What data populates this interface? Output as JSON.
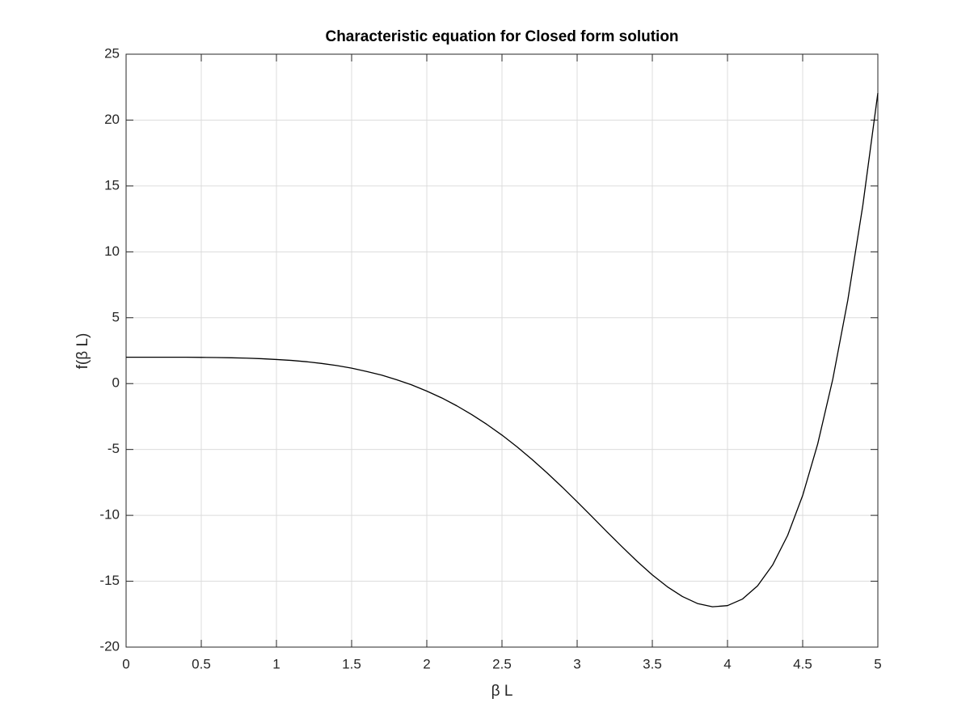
{
  "chart_data": {
    "type": "line",
    "title": "Characteristic equation for Closed form solution",
    "xlabel": "β L",
    "ylabel": "f(β L)",
    "x": [
      0,
      0.1,
      0.2,
      0.3,
      0.4,
      0.5,
      0.6,
      0.7,
      0.8,
      0.9,
      1.0,
      1.1,
      1.2,
      1.3,
      1.4,
      1.5,
      1.6,
      1.7,
      1.8,
      1.9,
      2.0,
      2.1,
      2.2,
      2.3,
      2.4,
      2.5,
      2.6,
      2.7,
      2.8,
      2.9,
      3.0,
      3.1,
      3.2,
      3.3,
      3.4,
      3.5,
      3.6,
      3.7,
      3.8,
      3.9,
      4.0,
      4.1,
      4.2,
      4.3,
      4.4,
      4.5,
      4.6,
      4.7,
      4.8,
      4.9,
      5.0
    ],
    "values": [
      2,
      2.0,
      2.0,
      2.0,
      2.0,
      1.99,
      1.98,
      1.96,
      1.93,
      1.89,
      1.83,
      1.76,
      1.66,
      1.53,
      1.37,
      1.17,
      0.92,
      0.64,
      0.29,
      -0.1,
      -0.57,
      -1.09,
      -1.69,
      -2.36,
      -3.1,
      -3.91,
      -4.8,
      -5.76,
      -6.78,
      -7.85,
      -8.97,
      -10.11,
      -11.27,
      -12.4,
      -13.5,
      -14.52,
      -15.42,
      -16.16,
      -16.69,
      -16.94,
      -16.85,
      -16.35,
      -15.35,
      -13.77,
      -11.52,
      -8.49,
      -4.58,
      0.32,
      6.32,
      13.52,
      22.05
    ],
    "color": "#000000",
    "xlim": [
      0,
      5
    ],
    "xticks": [
      0,
      0.5,
      1,
      1.5,
      2,
      2.5,
      3,
      3.5,
      4,
      4.5,
      5
    ],
    "ylim": [
      -20,
      25
    ],
    "yticks": [
      -20,
      -15,
      -10,
      -5,
      0,
      5,
      10,
      15,
      20,
      25
    ],
    "grid": true
  }
}
